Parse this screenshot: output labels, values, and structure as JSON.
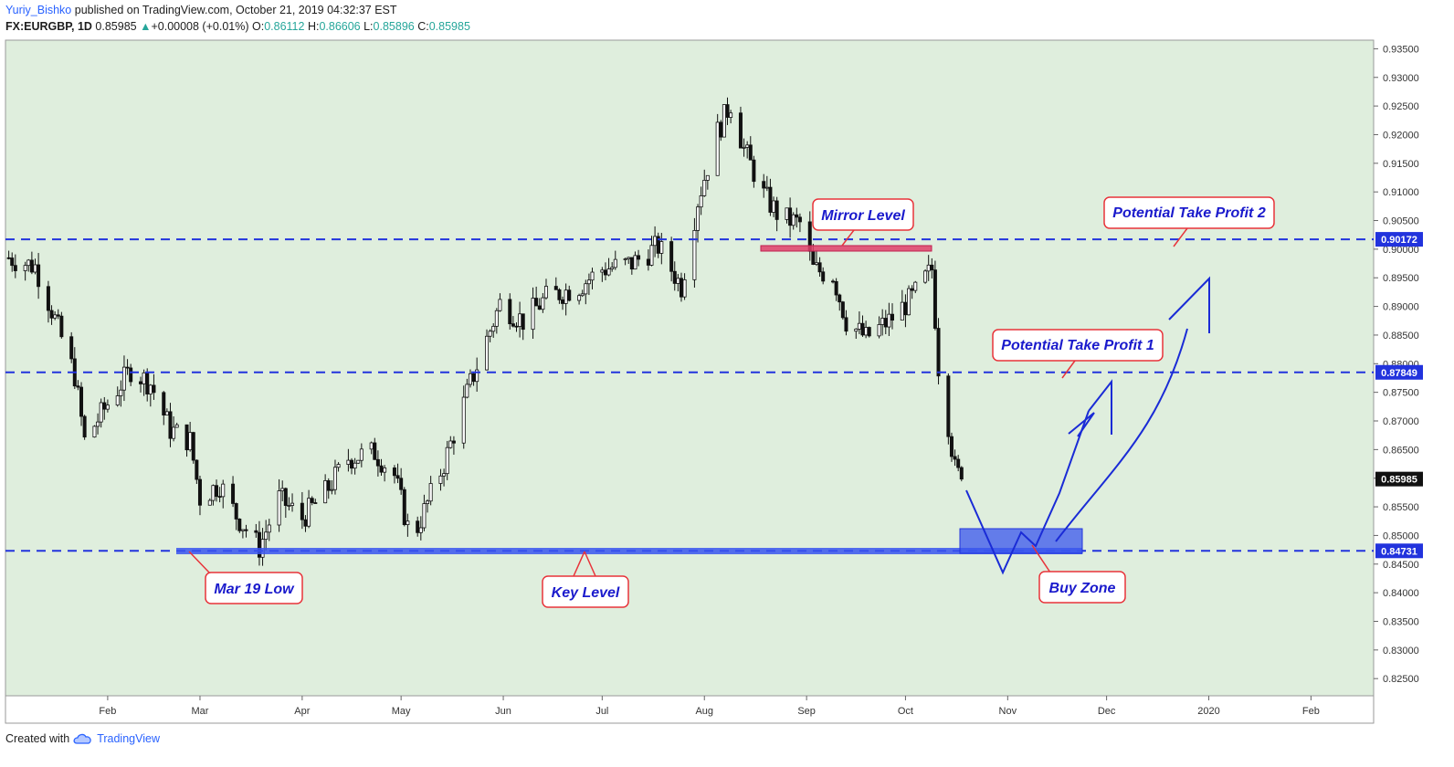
{
  "header": {
    "author": "Yuriy_Bishko",
    "published": "published on TradingView.com, October 21, 2019 04:32:37 EST",
    "symbol": "FX:EURGBP, 1D",
    "last": "0.85985",
    "change": "+0.00008 (+0.01%)",
    "o_label": "O:",
    "o": "0.86112",
    "h_label": "H:",
    "h": "0.86606",
    "l_label": "L:",
    "l": "0.85896",
    "c_label": "C:",
    "c": "0.85985"
  },
  "footer": {
    "created_with": "Created with",
    "brand": "TradingView"
  },
  "colors": {
    "background": "#dfeedd",
    "level": "#2233dd",
    "callout_border": "#e8333a",
    "callout_text": "#1a1acc",
    "buy_zone": "#3a55ee",
    "mirror": "#e0406a"
  },
  "chart_data": {
    "type": "candlestick",
    "title": "FX:EURGBP, 1D",
    "x_ticks": [
      "Feb",
      "Mar",
      "Apr",
      "May",
      "Jun",
      "Jul",
      "Aug",
      "Sep",
      "Oct",
      "Nov",
      "Dec",
      "2020",
      "Feb"
    ],
    "y_ticks": [
      "0.93500",
      "0.93000",
      "0.92500",
      "0.92000",
      "0.91500",
      "0.91000",
      "0.90500",
      "0.90000",
      "0.89500",
      "0.89000",
      "0.88500",
      "0.88000",
      "0.87500",
      "0.87000",
      "0.86500",
      "0.86000",
      "0.85500",
      "0.85000",
      "0.84500",
      "0.84000",
      "0.83500",
      "0.83000",
      "0.82500"
    ],
    "ylim": [
      0.822,
      0.9365
    ],
    "levels": [
      {
        "value": 0.90172,
        "label": "0.90172"
      },
      {
        "value": 0.87849,
        "label": "0.87849"
      },
      {
        "value": 0.84731,
        "label": "0.84731"
      }
    ],
    "last_price": {
      "value": 0.85985,
      "label": "0.85985"
    },
    "close_path": [
      [
        "2019-01-02",
        0.8985
      ],
      [
        "2019-01-10",
        0.897
      ],
      [
        "2019-01-14",
        0.891
      ],
      [
        "2019-01-22",
        0.878
      ],
      [
        "2019-01-25",
        0.8665
      ],
      [
        "2019-02-01",
        0.873
      ],
      [
        "2019-02-08",
        0.879
      ],
      [
        "2019-02-14",
        0.8765
      ],
      [
        "2019-02-20",
        0.8685
      ],
      [
        "2019-02-26",
        0.8665
      ],
      [
        "2019-03-01",
        0.8565
      ],
      [
        "2019-03-07",
        0.859
      ],
      [
        "2019-03-12",
        0.8535
      ],
      [
        "2019-03-19",
        0.8479
      ],
      [
        "2019-03-25",
        0.8565
      ],
      [
        "2019-04-01",
        0.853
      ],
      [
        "2019-04-08",
        0.8575
      ],
      [
        "2019-04-15",
        0.8635
      ],
      [
        "2019-04-23",
        0.8645
      ],
      [
        "2019-04-29",
        0.8605
      ],
      [
        "2019-05-03",
        0.8515
      ],
      [
        "2019-05-06",
        0.8515
      ],
      [
        "2019-05-14",
        0.8625
      ],
      [
        "2019-05-22",
        0.8765
      ],
      [
        "2019-05-31",
        0.8905
      ],
      [
        "2019-06-07",
        0.8875
      ],
      [
        "2019-06-14",
        0.8915
      ],
      [
        "2019-06-24",
        0.8935
      ],
      [
        "2019-07-01",
        0.8965
      ],
      [
        "2019-07-10",
        0.8975
      ],
      [
        "2019-07-18",
        0.9005
      ],
      [
        "2019-07-25",
        0.8935
      ],
      [
        "2019-07-30",
        0.9085
      ],
      [
        "2019-08-05",
        0.9205
      ],
      [
        "2019-08-09",
        0.9255
      ],
      [
        "2019-08-13",
        0.9175
      ],
      [
        "2019-08-19",
        0.9095
      ],
      [
        "2019-08-24",
        0.9055
      ],
      [
        "2019-08-30",
        0.9045
      ],
      [
        "2019-09-03",
        0.8965
      ],
      [
        "2019-09-09",
        0.8955
      ],
      [
        "2019-09-13",
        0.8875
      ],
      [
        "2019-09-19",
        0.8845
      ],
      [
        "2019-09-26",
        0.8875
      ],
      [
        "2019-10-03",
        0.8915
      ],
      [
        "2019-10-09",
        0.8965
      ],
      [
        "2019-10-11",
        0.8795
      ],
      [
        "2019-10-14",
        0.8695
      ],
      [
        "2019-10-16",
        0.8615
      ],
      [
        "2019-10-18",
        0.85985
      ]
    ],
    "annotations": [
      {
        "text": "Mirror Level"
      },
      {
        "text": "Potential Take Profit 2"
      },
      {
        "text": "Potential Take Profit 1"
      },
      {
        "text": "Mar 19 Low"
      },
      {
        "text": "Key Level"
      },
      {
        "text": "Buy Zone"
      }
    ]
  }
}
